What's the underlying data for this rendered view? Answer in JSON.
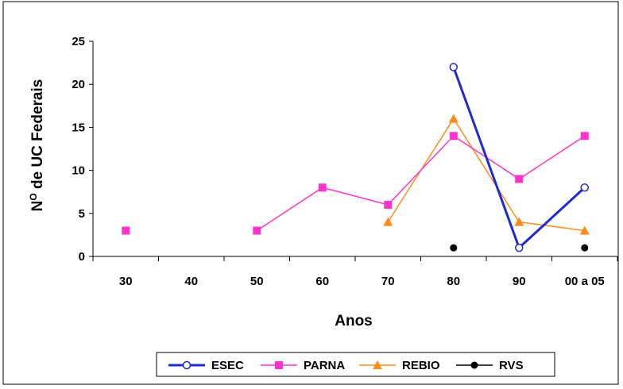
{
  "chart_data": {
    "type": "line",
    "title": "",
    "xlabel": "Anos",
    "ylabel": "Nº de UC Federais",
    "ylabel_main": "N",
    "ylabel_sup": "O",
    "ylabel_rest": " de UC Federais",
    "categories": [
      "30",
      "40",
      "50",
      "60",
      "70",
      "80",
      "90",
      "00 a 05"
    ],
    "ylim": [
      0,
      25
    ],
    "yticks": [
      "0",
      "5",
      "10",
      "15",
      "20",
      "25"
    ],
    "grid": false,
    "legend_position": "bottom",
    "series": [
      {
        "name": "ESEC",
        "color": "#1f2bd1",
        "marker": "circle-open",
        "values": [
          null,
          null,
          null,
          null,
          null,
          22,
          1,
          8
        ]
      },
      {
        "name": "PARNA",
        "color": "#ff33cc",
        "marker": "square",
        "values": [
          3,
          null,
          3,
          8,
          6,
          14,
          9,
          14
        ]
      },
      {
        "name": "REBIO",
        "color": "#ff8c1a",
        "marker": "triangle",
        "values": [
          null,
          null,
          null,
          null,
          4,
          16,
          4,
          3
        ]
      },
      {
        "name": "RVS",
        "color": "#000000",
        "marker": "circle",
        "values": [
          null,
          null,
          null,
          null,
          null,
          1,
          null,
          1
        ]
      }
    ]
  }
}
